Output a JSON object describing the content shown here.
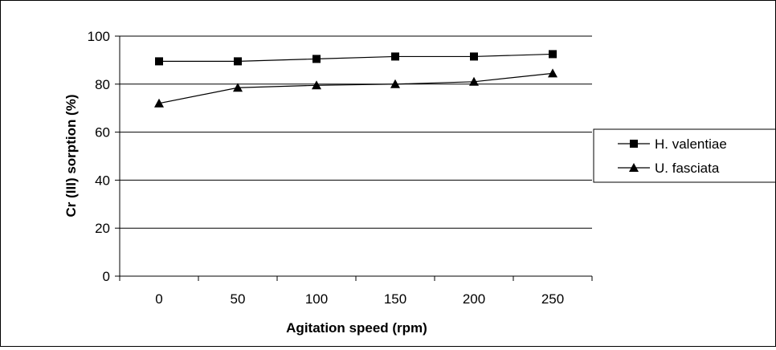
{
  "chart_data": {
    "type": "line",
    "title": "",
    "xlabel": "Agitation speed (rpm)",
    "ylabel": "Cr (III) sorption (%)",
    "categories": [
      "0",
      "50",
      "100",
      "150",
      "200",
      "250"
    ],
    "ylim": [
      0,
      100
    ],
    "yticks": [
      "0",
      "20",
      "40",
      "60",
      "80",
      "100"
    ],
    "grid": "horizontal",
    "legend_position": "right",
    "series": [
      {
        "name": "H. valentiae",
        "marker": "square",
        "color": "#000000",
        "values": [
          89.5,
          89.5,
          90.5,
          91.5,
          91.5,
          92.5
        ]
      },
      {
        "name": "U. fasciata",
        "marker": "triangle",
        "color": "#000000",
        "values": [
          72,
          78.5,
          79.5,
          80,
          81,
          84.5
        ]
      }
    ]
  }
}
